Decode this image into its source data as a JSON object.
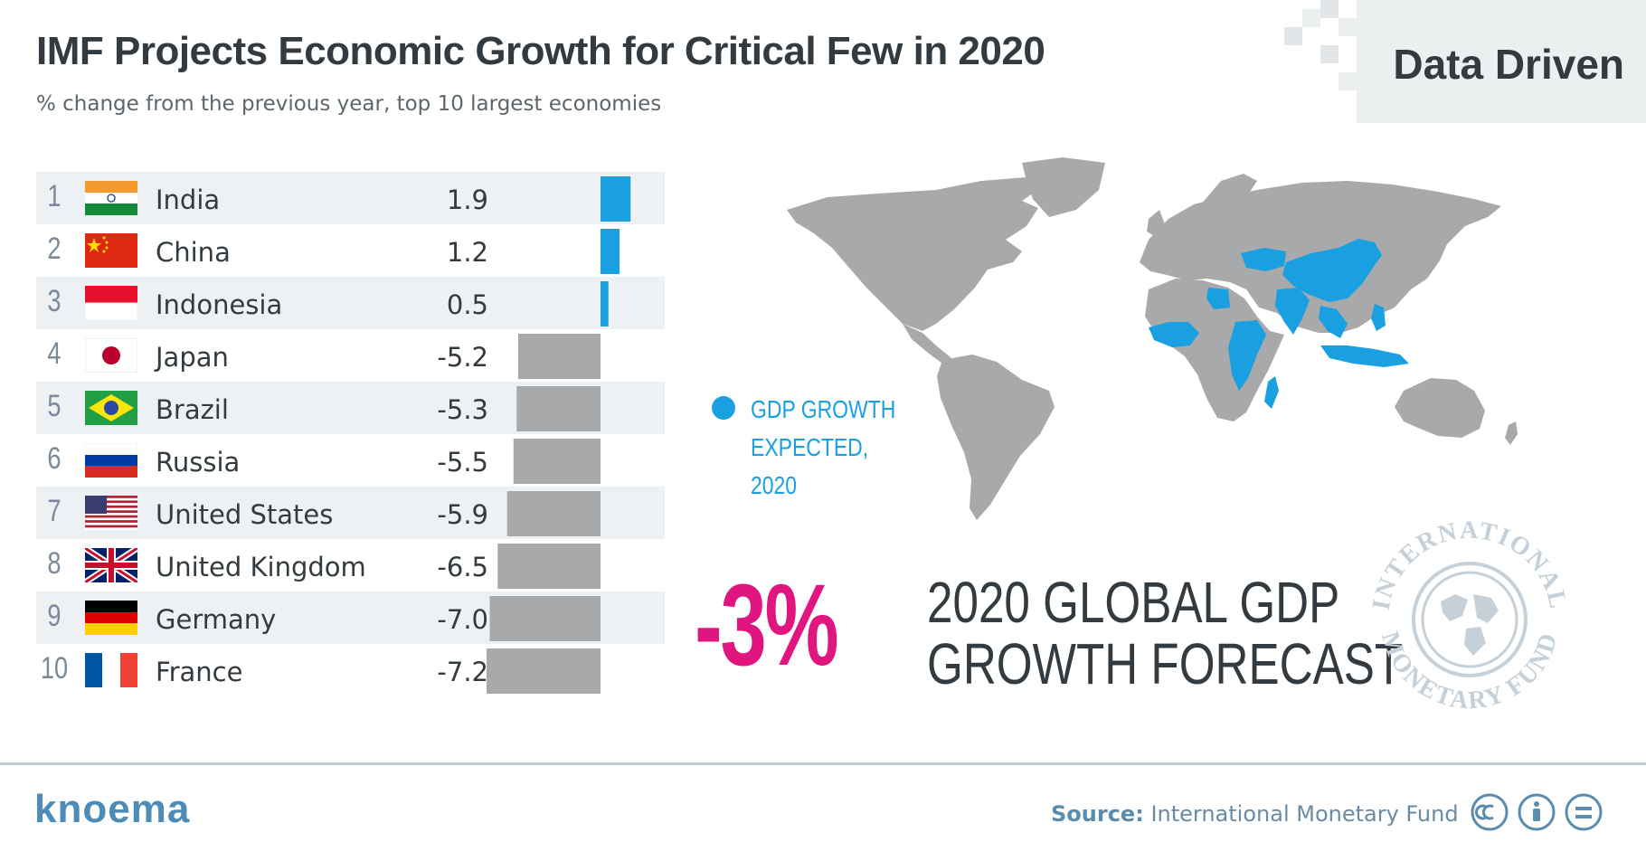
{
  "header": {
    "title": "IMF Projects Economic Growth for Critical Few in 2020",
    "subtitle": "% change from the previous year, top 10 largest economies",
    "brand": "Data Driven"
  },
  "chart_data": {
    "type": "bar",
    "title": "IMF Projects Economic Growth for Critical Few in 2020",
    "subtitle": "% change from the previous year, top 10 largest economies",
    "orientation": "horizontal",
    "categories": [
      "India",
      "China",
      "Indonesia",
      "Japan",
      "Brazil",
      "Russia",
      "United States",
      "United Kingdom",
      "Germany",
      "France"
    ],
    "ranks": [
      "1",
      "2",
      "3",
      "4",
      "5",
      "6",
      "7",
      "8",
      "9",
      "10"
    ],
    "values": [
      1.9,
      1.2,
      0.5,
      -5.2,
      -5.3,
      -5.5,
      -5.9,
      -6.5,
      -7.0,
      -7.2
    ],
    "value_labels": [
      "1.9",
      "1.2",
      "0.5",
      "-5.2",
      "-5.3",
      "-5.5",
      "-5.9",
      "-6.5",
      "-7.0",
      "-7.2"
    ],
    "positive_color": "#1a9fe0",
    "negative_color": "#a7a9ab",
    "row_shade_color": "#eef1f4"
  },
  "map": {
    "legend_line1": "GDP GROWTH",
    "legend_line2": "EXPECTED, 2020",
    "growth_color": "#1a9fe0",
    "land_color": "#a7a9ab"
  },
  "highlight": {
    "figure": "-3%",
    "line1": "2020 GLOBAL GDP",
    "line2": "GROWTH FORECAST",
    "figure_color": "#e0157f"
  },
  "seal": {
    "top_text": "INTERNATIONAL",
    "bottom_text": "MONETARY FUND",
    "color": "#c6d0d8"
  },
  "footer": {
    "logo": "knoema",
    "source_label": "Source:",
    "source_text": "International Monetary Fund",
    "license_icons": [
      "cc-icon",
      "by-icon",
      "nd-icon"
    ]
  }
}
